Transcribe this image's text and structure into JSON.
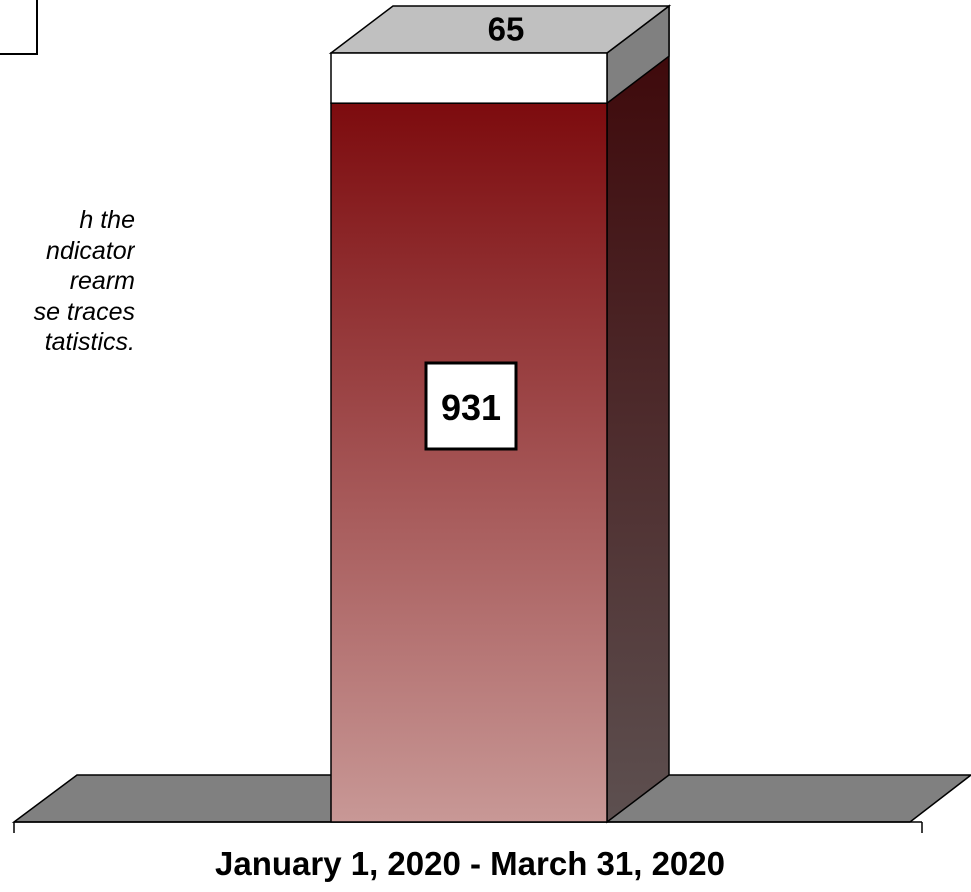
{
  "chart_data": {
    "type": "bar",
    "stacked": true,
    "three_d": true,
    "categories": [
      "January 1, 2020 - March 31, 2020"
    ],
    "series": [
      {
        "values": [
          931
        ],
        "color": "#c89896",
        "color_top": "#7d0b0e"
      },
      {
        "values": [
          65
        ],
        "color": "#ffffff"
      }
    ],
    "total": 996,
    "data_labels": [
      "931",
      "65"
    ],
    "xlabel": "January 1, 2020 - March 31, 2020",
    "grid": false,
    "legend": "top-left (cropped)"
  },
  "annotation": {
    "lines": [
      "h the",
      "ndicator",
      "rearm",
      "se traces",
      "tatistics."
    ]
  }
}
